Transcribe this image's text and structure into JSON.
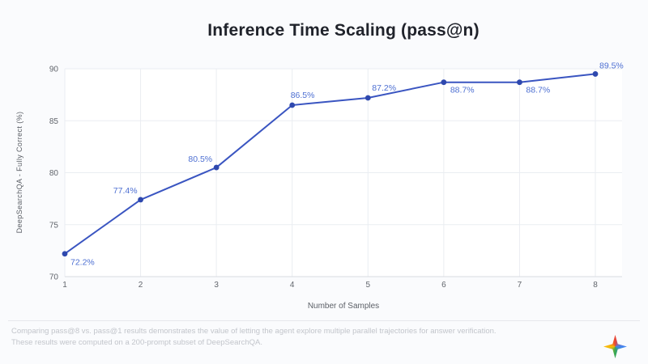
{
  "chart_data": {
    "type": "line",
    "title": "Inference Time Scaling (pass@n)",
    "x": [
      1,
      2,
      3,
      4,
      5,
      6,
      7,
      8
    ],
    "values": [
      72.2,
      77.4,
      80.5,
      86.5,
      87.2,
      88.7,
      88.7,
      89.5
    ],
    "point_labels": [
      "72.2%",
      "77.4%",
      "80.5%",
      "86.5%",
      "87.2%",
      "88.7%",
      "88.7%",
      "89.5%"
    ],
    "xlabel": "Number of Samples",
    "ylabel": "DeepSearchQA - Fully Correct (%)",
    "ylim": [
      70,
      90
    ],
    "yticks": [
      70,
      75,
      80,
      85,
      90
    ],
    "grid": true,
    "legend": "none",
    "colors": {
      "line": "#3a55c1",
      "marker": "#2e48ae",
      "point_label": "#4d6fd2",
      "gridline": "#eaedf2",
      "axis_line": "#d8dbe1"
    }
  },
  "footer": {
    "line1": "Comparing pass@8 vs. pass@1 results demonstrates the value of letting the agent explore multiple parallel trajectories for answer verification.",
    "line2": "These results were computed on a 200-prompt subset of DeepSearchQA.",
    "logo": {
      "name": "gemini-sparkle",
      "colors": [
        "#ea4335",
        "#4285f4",
        "#34a853",
        "#fbbc05"
      ]
    }
  }
}
